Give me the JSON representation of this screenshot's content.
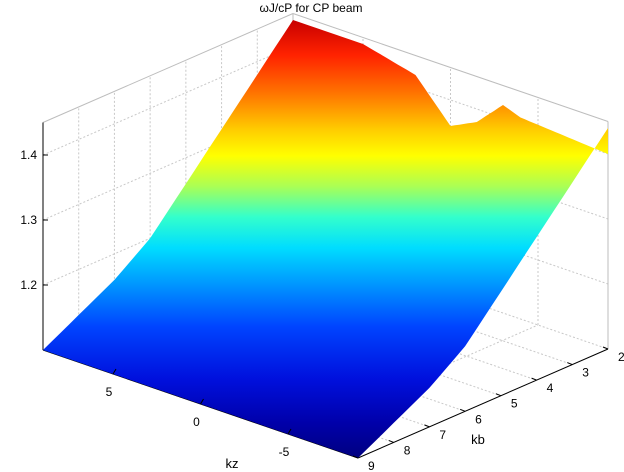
{
  "chart_data": {
    "type": "surface",
    "title": "ωJ/cP for CP beam",
    "xlabel": "kz",
    "ylabel": "kb",
    "zlabel": "",
    "x_ticks": [
      5,
      0,
      -5
    ],
    "x_tick_labels": [
      "5",
      "0",
      "-5"
    ],
    "y_ticks": [
      2,
      3,
      4,
      5,
      6,
      7,
      8,
      9
    ],
    "y_tick_labels": [
      "2",
      "3",
      "4",
      "5",
      "6",
      "7",
      "8",
      "9"
    ],
    "z_ticks": [
      1.2,
      1.3,
      1.4
    ],
    "z_tick_labels": [
      "1.2",
      "1.3",
      "1.4"
    ],
    "xlim": [
      -9,
      9
    ],
    "ylim": [
      2,
      9
    ],
    "zlim": [
      1.1,
      1.45
    ],
    "grid": true,
    "colormap": "jet",
    "surface_z_at_kb": {
      "kb": [
        2,
        3,
        4,
        5,
        6,
        7,
        8,
        9
      ],
      "z": [
        1.44,
        1.38,
        1.32,
        1.26,
        1.2,
        1.16,
        1.13,
        1.1
      ]
    },
    "ripples_at_kb_2": {
      "kz": [
        -9,
        -4,
        -3,
        -1.5,
        0,
        2,
        5,
        9
      ],
      "z": [
        1.4,
        1.41,
        1.42,
        1.38,
        1.36,
        1.42,
        1.44,
        1.44
      ]
    }
  }
}
